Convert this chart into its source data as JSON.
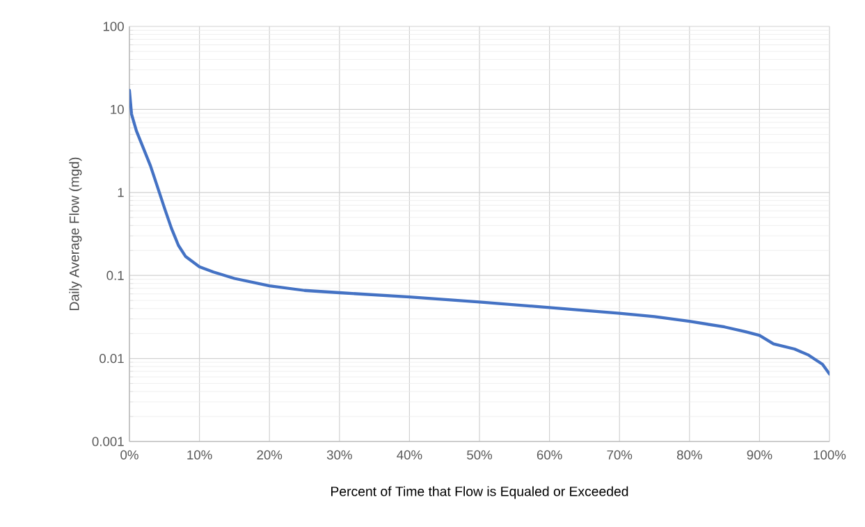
{
  "chart_data": {
    "type": "line",
    "xlabel": "Percent of Time that Flow is Equaled or Exceeded",
    "ylabel": "Daily Average Flow (mgd)",
    "x": [
      0,
      0.3,
      1,
      2,
      3,
      4,
      5,
      6,
      7,
      8,
      10,
      12,
      15,
      20,
      25,
      30,
      40,
      50,
      60,
      70,
      75,
      80,
      85,
      88,
      90,
      92,
      95,
      97,
      99,
      100
    ],
    "series": [
      {
        "color": "#4472c4",
        "values": [
          17,
          8.8,
          5.5,
          3.4,
          2.1,
          1.17,
          0.65,
          0.37,
          0.23,
          0.17,
          0.127,
          0.11,
          0.092,
          0.075,
          0.066,
          0.062,
          0.055,
          0.048,
          0.041,
          0.035,
          0.032,
          0.028,
          0.024,
          0.021,
          0.019,
          0.015,
          0.013,
          0.011,
          0.0085,
          0.0065
        ]
      }
    ],
    "xlim": [
      0,
      100
    ],
    "xticks": [
      {
        "value": 0,
        "label": "0%"
      },
      {
        "value": 10,
        "label": "10%"
      },
      {
        "value": 20,
        "label": "20%"
      },
      {
        "value": 30,
        "label": "30%"
      },
      {
        "value": 40,
        "label": "40%"
      },
      {
        "value": 50,
        "label": "50%"
      },
      {
        "value": 60,
        "label": "60%"
      },
      {
        "value": 70,
        "label": "70%"
      },
      {
        "value": 80,
        "label": "80%"
      },
      {
        "value": 90,
        "label": "90%"
      },
      {
        "value": 100,
        "label": "100%"
      }
    ],
    "ylim": [
      0.001,
      100
    ],
    "yticks": [
      0.001,
      0.01,
      0.1,
      1,
      10,
      100
    ],
    "log": "y",
    "grid": true,
    "marker": "none",
    "line_style": "solid"
  }
}
